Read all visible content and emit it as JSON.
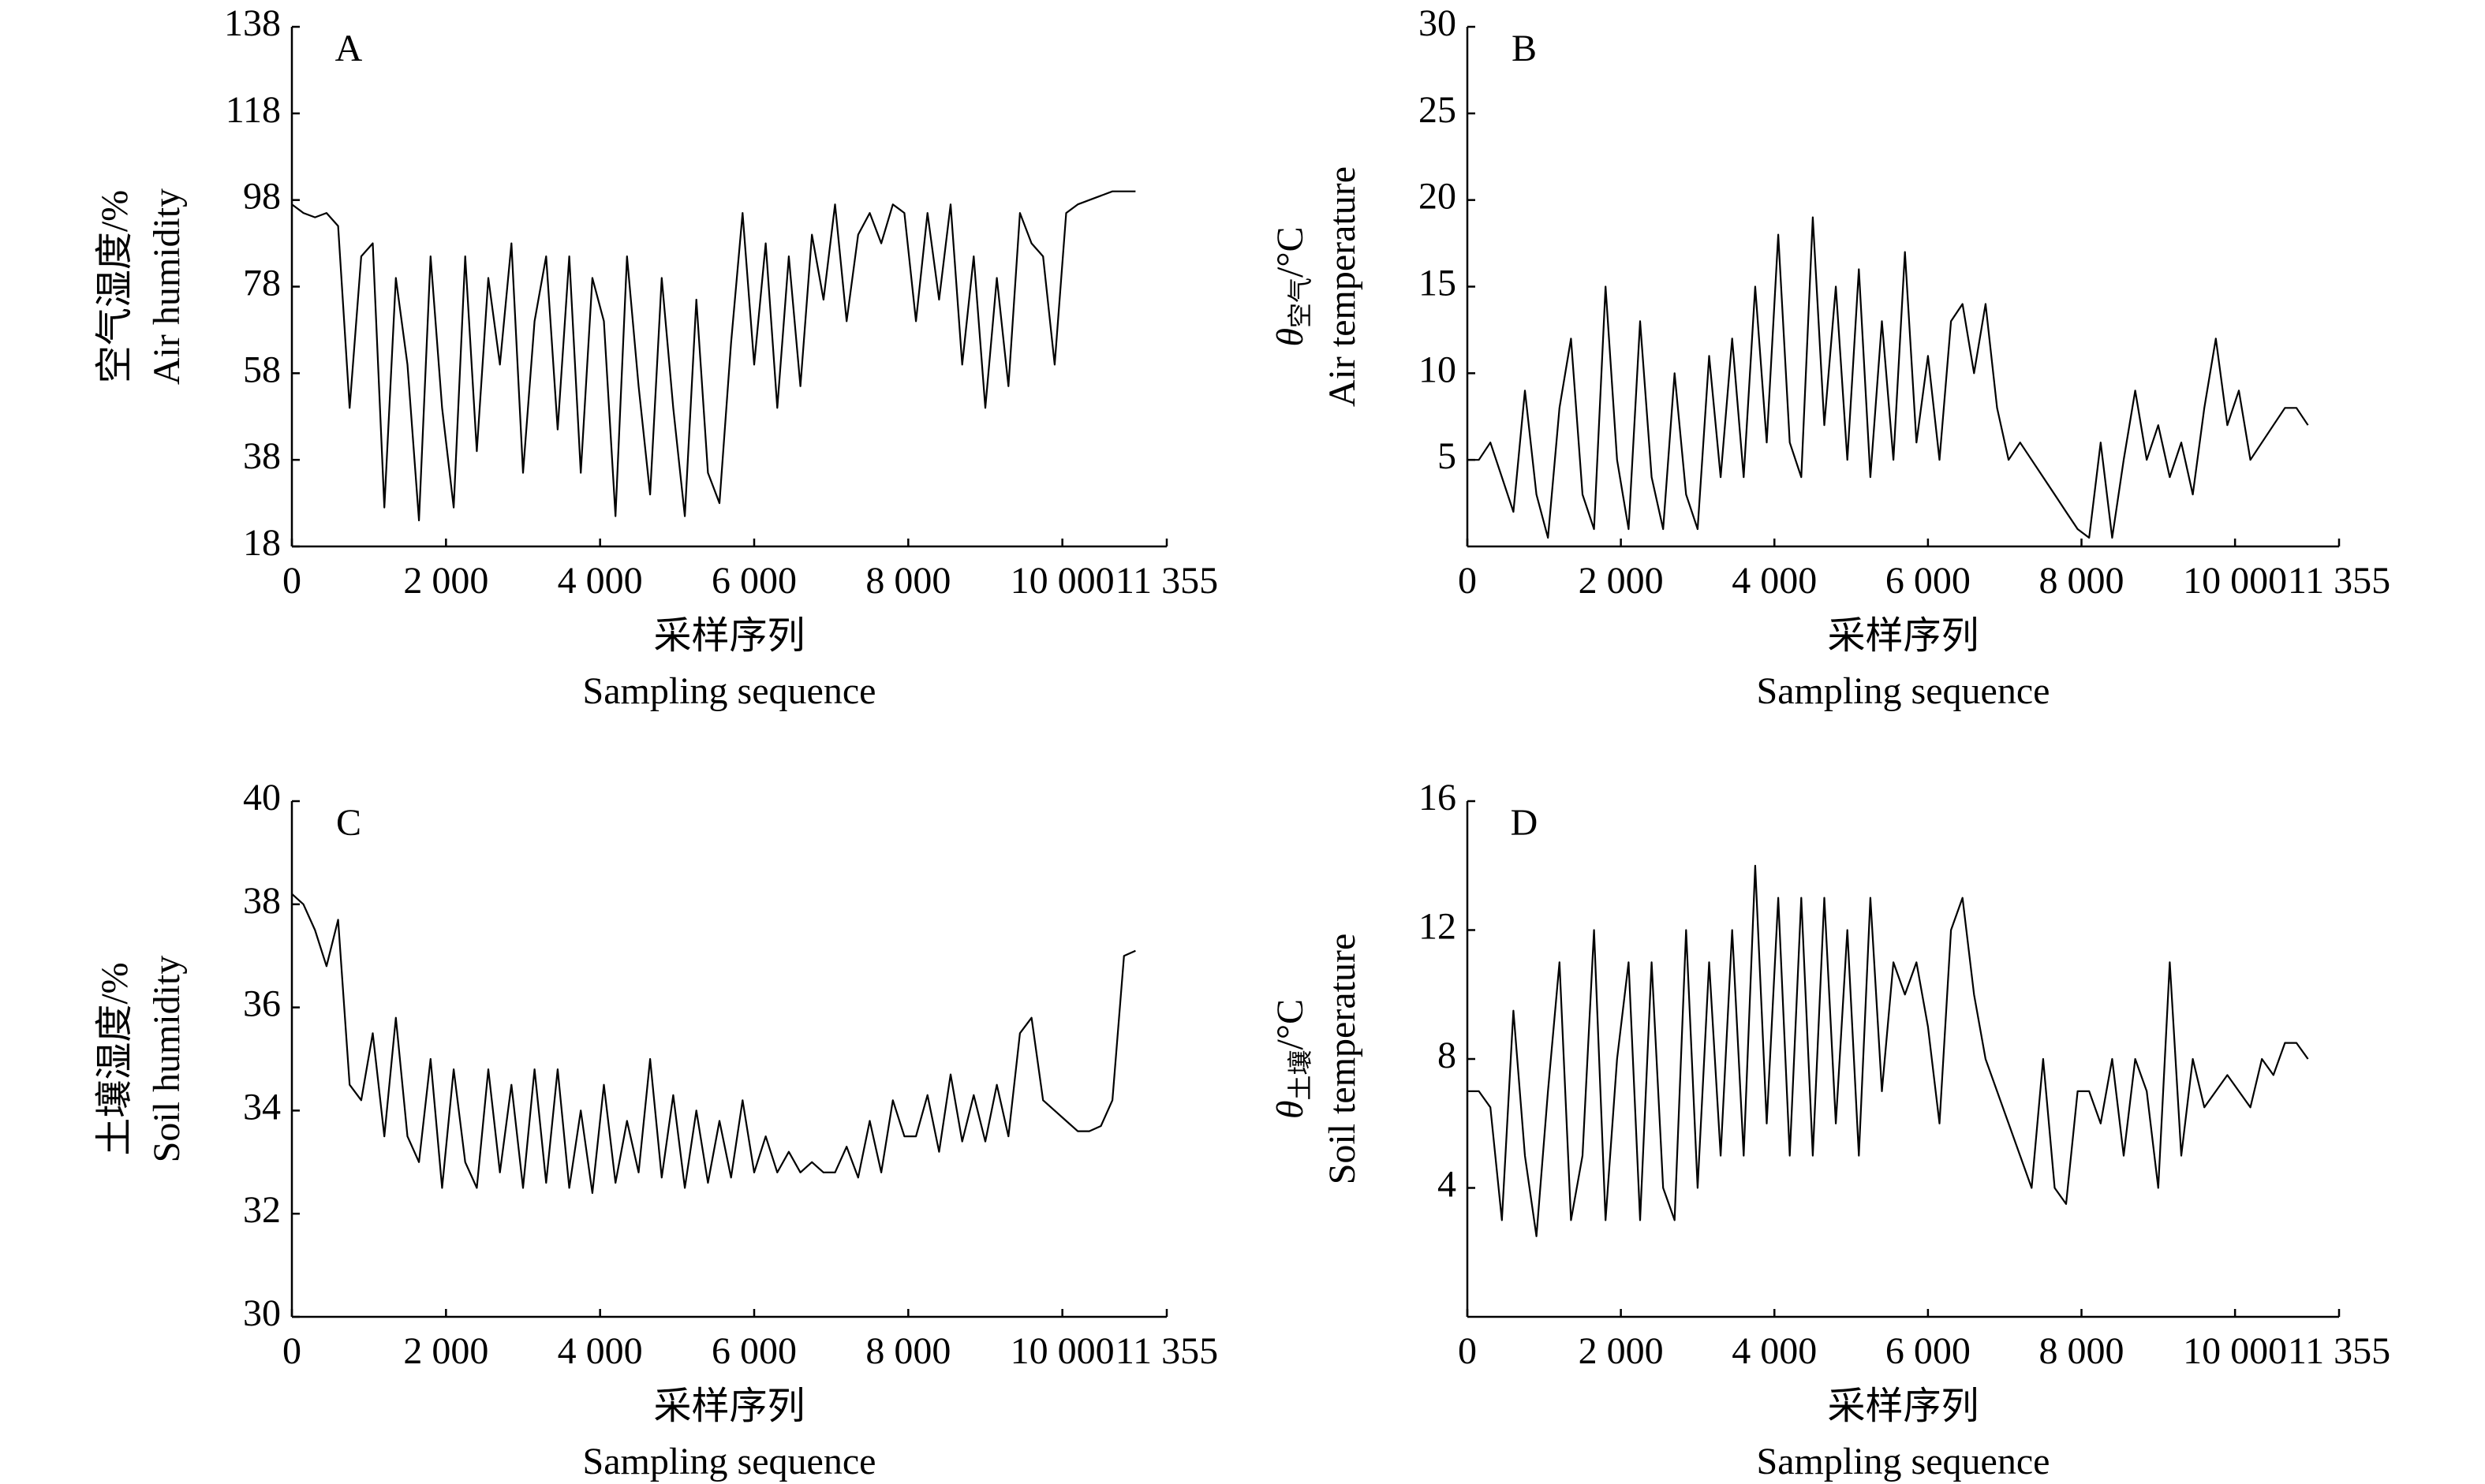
{
  "chart_data": [
    {
      "type": "line",
      "label": "A",
      "ylabel": [
        "空气湿度/%",
        "Air humidity"
      ],
      "xlabel": [
        "采样序列",
        "Sampling sequence"
      ],
      "xlim": [
        0,
        11355
      ],
      "xticks": [
        0,
        {
          "value": 2000,
          "label": "2 000"
        },
        {
          "value": 4000,
          "label": "4 000"
        },
        {
          "value": 6000,
          "label": "6 000"
        },
        {
          "value": 8000,
          "label": "8 000"
        },
        {
          "value": 10000,
          "label": "10 000"
        },
        {
          "value": 11355,
          "label": "11 355"
        }
      ],
      "ylim": [
        18,
        138
      ],
      "yticks": [
        18,
        38,
        58,
        78,
        98,
        118,
        138
      ],
      "color": "#000000",
      "x": [
        0,
        150,
        300,
        450,
        600,
        750,
        900,
        1050,
        1200,
        1350,
        1500,
        1650,
        1800,
        1950,
        2100,
        2250,
        2400,
        2550,
        2700,
        2850,
        3000,
        3150,
        3300,
        3450,
        3600,
        3750,
        3900,
        4050,
        4200,
        4350,
        4500,
        4650,
        4800,
        4950,
        5100,
        5250,
        5400,
        5550,
        5700,
        5850,
        6000,
        6150,
        6300,
        6450,
        6600,
        6750,
        6900,
        7050,
        7200,
        7350,
        7500,
        7650,
        7800,
        7950,
        8100,
        8250,
        8400,
        8550,
        8700,
        8850,
        9000,
        9150,
        9300,
        9450,
        9600,
        9750,
        9900,
        10050,
        10200,
        10350,
        10500,
        10650,
        10800,
        10950
      ],
      "values": [
        97,
        95,
        94,
        95,
        92,
        50,
        85,
        88,
        27,
        80,
        60,
        24,
        85,
        50,
        27,
        85,
        40,
        80,
        60,
        88,
        35,
        70,
        85,
        45,
        85,
        35,
        80,
        70,
        25,
        85,
        55,
        30,
        80,
        50,
        25,
        75,
        35,
        28,
        65,
        95,
        60,
        88,
        50,
        85,
        55,
        90,
        75,
        97,
        70,
        90,
        95,
        88,
        97,
        95,
        70,
        95,
        75,
        97,
        60,
        85,
        50,
        80,
        55,
        95,
        88,
        85,
        60,
        95,
        97,
        98,
        99,
        100,
        100,
        100
      ]
    },
    {
      "type": "line",
      "label": "B",
      "ylabel": [
        [
          "θ",
          "空气",
          "/°C"
        ],
        "Air temperature"
      ],
      "xlabel": [
        "采样序列",
        "Sampling sequence"
      ],
      "xlim": [
        0,
        11355
      ],
      "xticks": [
        0,
        {
          "value": 2000,
          "label": "2 000"
        },
        {
          "value": 4000,
          "label": "4 000"
        },
        {
          "value": 6000,
          "label": "6 000"
        },
        {
          "value": 8000,
          "label": "8 000"
        },
        {
          "value": 10000,
          "label": "10 000"
        },
        {
          "value": 11355,
          "label": "11 355"
        }
      ],
      "ylim": [
        0,
        30
      ],
      "yticks": [
        5,
        10,
        15,
        20,
        25,
        30
      ],
      "color": "#000000",
      "x": [
        0,
        150,
        300,
        450,
        600,
        750,
        900,
        1050,
        1200,
        1350,
        1500,
        1650,
        1800,
        1950,
        2100,
        2250,
        2400,
        2550,
        2700,
        2850,
        3000,
        3150,
        3300,
        3450,
        3600,
        3750,
        3900,
        4050,
        4200,
        4350,
        4500,
        4650,
        4800,
        4950,
        5100,
        5250,
        5400,
        5550,
        5700,
        5850,
        6000,
        6150,
        6300,
        6450,
        6600,
        6750,
        6900,
        7050,
        7200,
        7350,
        7500,
        7650,
        7800,
        7950,
        8100,
        8250,
        8400,
        8550,
        8700,
        8850,
        9000,
        9150,
        9300,
        9450,
        9600,
        9750,
        9900,
        10050,
        10200,
        10350,
        10500,
        10650,
        10800,
        10950
      ],
      "values": [
        5,
        5,
        6,
        4,
        2,
        9,
        3,
        0.5,
        8,
        12,
        3,
        1,
        15,
        5,
        1,
        13,
        4,
        1,
        10,
        3,
        1,
        11,
        4,
        12,
        4,
        15,
        6,
        18,
        6,
        4,
        19,
        7,
        15,
        5,
        16,
        4,
        13,
        5,
        17,
        6,
        11,
        5,
        13,
        14,
        10,
        14,
        8,
        5,
        6,
        5,
        4,
        3,
        2,
        1,
        0.5,
        6,
        0.5,
        5,
        9,
        5,
        7,
        4,
        6,
        3,
        8,
        12,
        7,
        9,
        5,
        6,
        7,
        8,
        8,
        7
      ]
    },
    {
      "type": "line",
      "label": "C",
      "ylabel": [
        "土壤湿度/%",
        "Soil humidity"
      ],
      "xlabel": [
        "采样序列",
        "Sampling sequence"
      ],
      "xlim": [
        0,
        11355
      ],
      "xticks": [
        0,
        {
          "value": 2000,
          "label": "2 000"
        },
        {
          "value": 4000,
          "label": "4 000"
        },
        {
          "value": 6000,
          "label": "6 000"
        },
        {
          "value": 8000,
          "label": "8 000"
        },
        {
          "value": 10000,
          "label": "10 000"
        },
        {
          "value": 11355,
          "label": "11 355"
        }
      ],
      "ylim": [
        30,
        40
      ],
      "yticks": [
        30,
        32,
        34,
        36,
        38,
        40
      ],
      "color": "#000000",
      "x": [
        0,
        150,
        300,
        450,
        600,
        750,
        900,
        1050,
        1200,
        1350,
        1500,
        1650,
        1800,
        1950,
        2100,
        2250,
        2400,
        2550,
        2700,
        2850,
        3000,
        3150,
        3300,
        3450,
        3600,
        3750,
        3900,
        4050,
        4200,
        4350,
        4500,
        4650,
        4800,
        4950,
        5100,
        5250,
        5400,
        5550,
        5700,
        5850,
        6000,
        6150,
        6300,
        6450,
        6600,
        6750,
        6900,
        7050,
        7200,
        7350,
        7500,
        7650,
        7800,
        7950,
        8100,
        8250,
        8400,
        8550,
        8700,
        8850,
        9000,
        9150,
        9300,
        9450,
        9600,
        9750,
        9900,
        10050,
        10200,
        10350,
        10500,
        10650,
        10800,
        10950
      ],
      "values": [
        38.2,
        38,
        37.5,
        36.8,
        37.7,
        34.5,
        34.2,
        35.5,
        33.5,
        35.8,
        33.5,
        33,
        35,
        32.5,
        34.8,
        33,
        32.5,
        34.8,
        32.8,
        34.5,
        32.5,
        34.8,
        32.6,
        34.8,
        32.5,
        34,
        32.4,
        34.5,
        32.6,
        33.8,
        32.8,
        35,
        32.7,
        34.3,
        32.5,
        34,
        32.6,
        33.8,
        32.7,
        34.2,
        32.8,
        33.5,
        32.8,
        33.2,
        32.8,
        33,
        32.8,
        32.8,
        33.3,
        32.7,
        33.8,
        32.8,
        34.2,
        33.5,
        33.5,
        34.3,
        33.2,
        34.7,
        33.4,
        34.3,
        33.4,
        34.5,
        33.5,
        35.5,
        35.8,
        34.2,
        34,
        33.8,
        33.6,
        33.6,
        33.7,
        34.2,
        37,
        37.1
      ]
    },
    {
      "type": "line",
      "label": "D",
      "ylabel": [
        [
          "θ",
          "土壤",
          "/°C"
        ],
        "Soil temperature"
      ],
      "xlabel": [
        "采样序列",
        "Sampling sequence"
      ],
      "xlim": [
        0,
        11355
      ],
      "xticks": [
        0,
        {
          "value": 2000,
          "label": "2 000"
        },
        {
          "value": 4000,
          "label": "4 000"
        },
        {
          "value": 6000,
          "label": "6 000"
        },
        {
          "value": 8000,
          "label": "8 000"
        },
        {
          "value": 10000,
          "label": "10 000"
        },
        {
          "value": 11355,
          "label": "11 355"
        }
      ],
      "ylim": [
        0,
        16
      ],
      "yticks": [
        4,
        8,
        12,
        16
      ],
      "color": "#000000",
      "x": [
        0,
        150,
        300,
        450,
        600,
        750,
        900,
        1050,
        1200,
        1350,
        1500,
        1650,
        1800,
        1950,
        2100,
        2250,
        2400,
        2550,
        2700,
        2850,
        3000,
        3150,
        3300,
        3450,
        3600,
        3750,
        3900,
        4050,
        4200,
        4350,
        4500,
        4650,
        4800,
        4950,
        5100,
        5250,
        5400,
        5550,
        5700,
        5850,
        6000,
        6150,
        6300,
        6450,
        6600,
        6750,
        6900,
        7050,
        7200,
        7350,
        7500,
        7650,
        7800,
        7950,
        8100,
        8250,
        8400,
        8550,
        8700,
        8850,
        9000,
        9150,
        9300,
        9450,
        9600,
        9750,
        9900,
        10050,
        10200,
        10350,
        10500,
        10650,
        10800,
        10950
      ],
      "values": [
        7,
        7,
        6.5,
        3,
        9.5,
        5,
        2.5,
        7,
        11,
        3,
        5,
        12,
        3,
        8,
        11,
        3,
        11,
        4,
        3,
        12,
        4,
        11,
        5,
        12,
        5,
        14,
        6,
        13,
        5,
        13,
        5,
        13,
        6,
        12,
        5,
        13,
        7,
        11,
        10,
        11,
        9,
        6,
        12,
        13,
        10,
        8,
        7,
        6,
        5,
        4,
        8,
        4,
        3.5,
        7,
        7,
        6,
        8,
        5,
        8,
        7,
        4,
        11,
        5,
        8,
        6.5,
        7,
        7.5,
        7,
        6.5,
        8,
        7.5,
        8.5,
        8.5,
        8
      ]
    }
  ]
}
